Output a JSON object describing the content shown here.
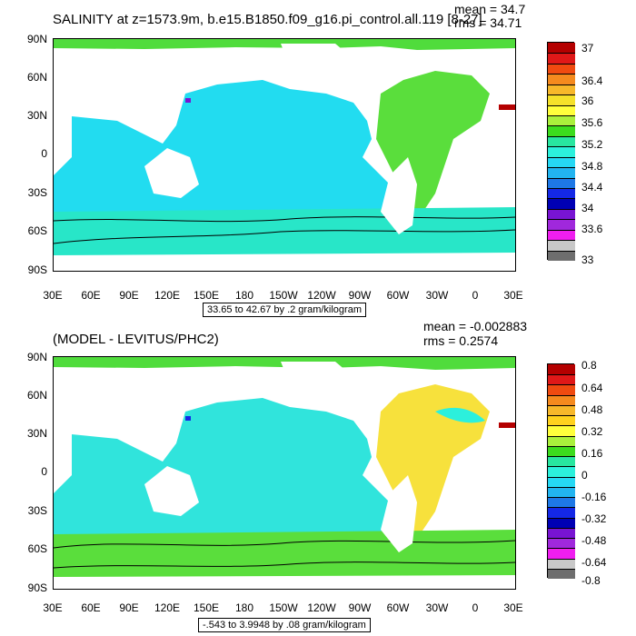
{
  "panels": [
    {
      "title": "SALINITY at z=1573.9m, b.e15.B1850.f09_g16.pi_control.all.119 [8-27]",
      "mean": "mean = 34.7",
      "rms": "rms = 34.71",
      "range_label": "33.65 to 42.67 by .2 gram/kilogram",
      "colorbar_labels": [
        "37",
        "36.4",
        "36",
        "35.6",
        "35.2",
        "34.8",
        "34.4",
        "34",
        "33.6",
        "33"
      ],
      "colorbar_colors": [
        "#b40000",
        "#e01818",
        "#f04a10",
        "#f58a1e",
        "#f7b82a",
        "#f5e12a",
        "#ffff3c",
        "#aaf03c",
        "#3cdc1e",
        "#28e6a0",
        "#2cf0dc",
        "#26d8f4",
        "#22b4f0",
        "#1e78e6",
        "#1428e6",
        "#0000b4",
        "#7814d2",
        "#a028dc",
        "#f01ef0",
        "#c8c8c8",
        "#6e6e6e"
      ],
      "map_colors": {
        "ocean": "#22dcf0",
        "atlantic": "#5ade3c",
        "southern": "#28e6c8",
        "arctic": "#50dc3c",
        "med": "#b40000"
      }
    },
    {
      "title": "(MODEL - LEVITUS/PHC2)",
      "mean": "mean = -0.002883",
      "rms": "rms = 0.2574",
      "range_label": "-.543 to 3.9948 by .08 gram/kilogram",
      "colorbar_labels": [
        "0.8",
        "0.64",
        "0.48",
        "0.32",
        "0.16",
        "0",
        "-0.16",
        "-0.32",
        "-0.48",
        "-0.64",
        "-0.8"
      ],
      "colorbar_colors": [
        "#b40000",
        "#e01818",
        "#f04a10",
        "#f58a1e",
        "#f7b82a",
        "#ffd21e",
        "#ffff3c",
        "#aaf03c",
        "#3cdc1e",
        "#28e6a0",
        "#2cf0dc",
        "#26d8f4",
        "#22b4f0",
        "#1e78e6",
        "#1428e6",
        "#0000b4",
        "#7814d2",
        "#a028dc",
        "#f01ef0",
        "#c8c8c8",
        "#6e6e6e"
      ],
      "map_colors": {
        "ocean": "#30e4dc",
        "atlantic": "#f7e13c",
        "southern": "#5ade3c",
        "arctic": "#50dc3c",
        "med": "#b40000"
      }
    }
  ],
  "axes": {
    "lat_labels": [
      "90N",
      "60N",
      "30N",
      "0",
      "30S",
      "60S",
      "90S"
    ],
    "lon_labels": [
      "30E",
      "60E",
      "90E",
      "120E",
      "150E",
      "180",
      "150W",
      "120W",
      "90W",
      "60W",
      "30W",
      "0",
      "30E"
    ]
  }
}
